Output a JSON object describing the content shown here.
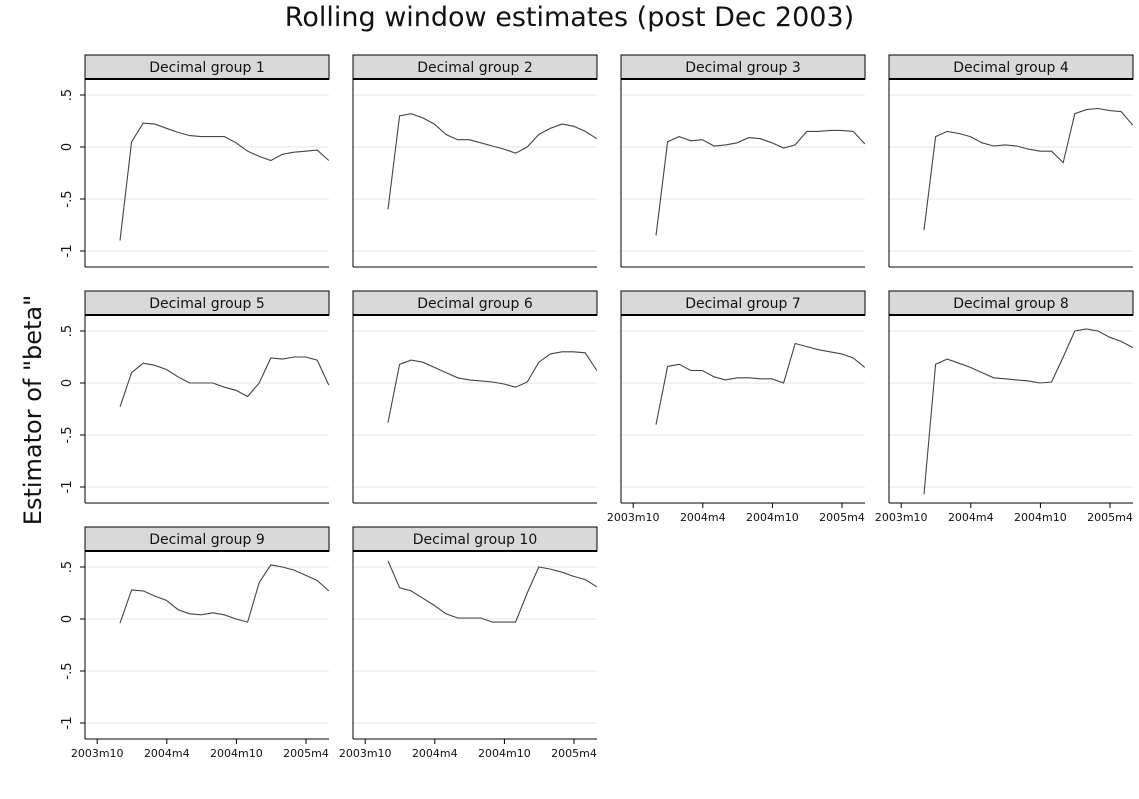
{
  "title": "Rolling window estimates (post Dec 2003)",
  "ylabel": "Estimator of \"beta\"",
  "chart_data": {
    "type": "line",
    "title": "Rolling window estimates (post Dec 2003)",
    "xlabel": "",
    "ylabel": "Estimator of \"beta\"",
    "x_ticks": [
      "2003m10",
      "2004m4",
      "2004m10",
      "2005m4"
    ],
    "y_ticks": [
      ".5",
      "0",
      "-.5",
      "-1"
    ],
    "y_tick_values": [
      0.5,
      0,
      -0.5,
      -1
    ],
    "ylim": [
      -1.1,
      0.7
    ],
    "grid": true,
    "x": [
      "2004m1",
      "2004m2",
      "2004m3",
      "2004m4",
      "2004m5",
      "2004m6",
      "2004m7",
      "2004m8",
      "2004m9",
      "2004m10",
      "2004m11",
      "2004m12",
      "2005m1",
      "2005m2",
      "2005m3",
      "2005m4",
      "2005m5",
      "2005m6",
      "2005m7"
    ],
    "series": [
      {
        "name": "Decimal group 1",
        "values": [
          -0.9,
          0.05,
          0.23,
          0.22,
          0.18,
          0.14,
          0.11,
          0.1,
          0.1,
          0.1,
          0.04,
          -0.04,
          -0.09,
          -0.13,
          -0.07,
          -0.05,
          -0.04,
          -0.03,
          -0.13
        ]
      },
      {
        "name": "Decimal group 2",
        "values": [
          -0.6,
          0.3,
          0.32,
          0.28,
          0.22,
          0.12,
          0.07,
          0.07,
          0.04,
          0.01,
          -0.02,
          -0.06,
          0.0,
          0.12,
          0.18,
          0.22,
          0.2,
          0.15,
          0.08
        ]
      },
      {
        "name": "Decimal group 3",
        "values": [
          -0.85,
          0.05,
          0.1,
          0.06,
          0.07,
          0.01,
          0.02,
          0.04,
          0.09,
          0.08,
          0.04,
          -0.01,
          0.02,
          0.15,
          0.15,
          0.16,
          0.16,
          0.15,
          0.03
        ]
      },
      {
        "name": "Decimal group 4",
        "values": [
          -0.8,
          0.1,
          0.15,
          0.13,
          0.1,
          0.04,
          0.01,
          0.02,
          0.01,
          -0.02,
          -0.04,
          -0.04,
          -0.15,
          0.32,
          0.36,
          0.37,
          0.35,
          0.34,
          0.21
        ]
      },
      {
        "name": "Decimal group 5",
        "values": [
          -0.23,
          0.1,
          0.19,
          0.17,
          0.13,
          0.06,
          0.0,
          0.0,
          0.0,
          -0.04,
          -0.07,
          -0.13,
          0.0,
          0.24,
          0.23,
          0.25,
          0.25,
          0.22,
          -0.02
        ]
      },
      {
        "name": "Decimal group 6",
        "values": [
          -0.38,
          0.18,
          0.22,
          0.2,
          0.15,
          0.1,
          0.05,
          0.03,
          0.02,
          0.01,
          -0.01,
          -0.04,
          0.01,
          0.2,
          0.28,
          0.3,
          0.3,
          0.29,
          0.12
        ]
      },
      {
        "name": "Decimal group 7",
        "values": [
          -0.4,
          0.16,
          0.18,
          0.12,
          0.12,
          0.06,
          0.03,
          0.05,
          0.05,
          0.04,
          0.04,
          0.0,
          0.38,
          0.35,
          0.32,
          0.3,
          0.28,
          0.24,
          0.15
        ]
      },
      {
        "name": "Decimal group 8",
        "values": [
          -1.07,
          0.18,
          0.23,
          0.19,
          0.15,
          0.1,
          0.05,
          0.04,
          0.03,
          0.02,
          0.0,
          0.01,
          0.25,
          0.5,
          0.52,
          0.5,
          0.44,
          0.4,
          0.34
        ]
      },
      {
        "name": "Decimal group 9",
        "values": [
          -0.04,
          0.28,
          0.27,
          0.22,
          0.18,
          0.09,
          0.05,
          0.04,
          0.06,
          0.04,
          0.0,
          -0.03,
          0.35,
          0.52,
          0.5,
          0.47,
          0.42,
          0.37,
          0.27
        ]
      },
      {
        "name": "Decimal group 10",
        "values": [
          0.56,
          0.3,
          0.27,
          0.2,
          0.13,
          0.05,
          0.01,
          0.01,
          0.01,
          -0.03,
          -0.03,
          -0.03,
          0.25,
          0.5,
          0.48,
          0.45,
          0.41,
          0.38,
          0.31
        ]
      }
    ]
  }
}
